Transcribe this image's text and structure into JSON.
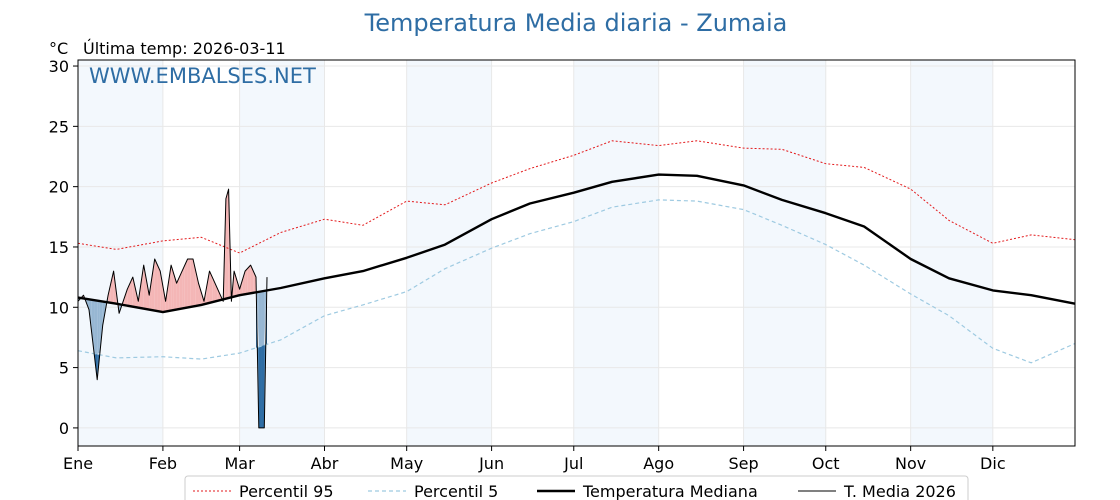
{
  "chart_data": {
    "type": "line",
    "title": "Temperatura Media diaria - Zumaia",
    "unit": "°C",
    "last_temp": "Última temp: 2026-03-11",
    "watermark": "WWW.EMBALSES.NET",
    "ylim": [
      -1.5,
      30.5
    ],
    "yticks": [
      0,
      5,
      10,
      15,
      20,
      25,
      30
    ],
    "months": [
      "Ene",
      "Feb",
      "Mar",
      "Abr",
      "May",
      "Jun",
      "Jul",
      "Ago",
      "Sep",
      "Oct",
      "Nov",
      "Dic"
    ],
    "grid": true,
    "legend_position": "bottom",
    "series": [
      {
        "name": "Percentil 95",
        "color": "#e31a1c",
        "style": "dotted",
        "x": [
          1,
          15,
          32,
          46,
          60,
          75,
          91,
          105,
          121,
          135,
          152,
          166,
          182,
          196,
          213,
          227,
          244,
          258,
          274,
          288,
          305,
          319,
          335,
          349,
          365
        ],
        "values": [
          15.3,
          14.8,
          15.5,
          15.8,
          14.5,
          16.2,
          17.3,
          16.8,
          18.8,
          18.5,
          20.3,
          21.5,
          22.6,
          23.8,
          23.4,
          23.8,
          23.2,
          23.1,
          21.9,
          21.6,
          19.8,
          17.2,
          15.3,
          16.0,
          15.6
        ]
      },
      {
        "name": "Percentil 5",
        "color": "#9ecae1",
        "style": "dashed",
        "x": [
          1,
          15,
          32,
          46,
          60,
          75,
          91,
          105,
          121,
          135,
          152,
          166,
          182,
          196,
          213,
          227,
          244,
          258,
          274,
          288,
          305,
          319,
          335,
          349,
          365
        ],
        "values": [
          6.4,
          5.8,
          5.9,
          5.7,
          6.2,
          7.3,
          9.3,
          10.2,
          11.3,
          13.2,
          14.9,
          16.1,
          17.1,
          18.3,
          18.9,
          18.8,
          18.1,
          16.8,
          15.2,
          13.5,
          11.1,
          9.3,
          6.6,
          5.4,
          7.0
        ]
      },
      {
        "name": "Temperatura Mediana",
        "color": "#000000",
        "style": "solid",
        "x": [
          1,
          15,
          32,
          46,
          60,
          75,
          91,
          105,
          121,
          135,
          152,
          166,
          182,
          196,
          213,
          227,
          244,
          258,
          274,
          288,
          305,
          319,
          335,
          349,
          365
        ],
        "values": [
          10.8,
          10.3,
          9.6,
          10.2,
          11.0,
          11.6,
          12.4,
          13.0,
          14.1,
          15.2,
          17.3,
          18.6,
          19.5,
          20.4,
          21.0,
          20.9,
          20.1,
          18.9,
          17.8,
          16.7,
          14.0,
          12.4,
          11.4,
          11.0,
          10.3
        ]
      },
      {
        "name": "T. Media 2026",
        "color": "#000000",
        "style": "solid",
        "x": [
          1,
          3,
          5,
          8,
          10,
          12,
          14,
          16,
          19,
          21,
          23,
          25,
          27,
          29,
          31,
          33,
          35,
          37,
          39,
          41,
          43,
          45,
          47,
          49,
          51,
          53,
          54,
          55,
          56,
          57,
          58,
          60,
          62,
          64,
          66,
          67,
          68,
          69,
          70
        ],
        "values": [
          10.5,
          11.0,
          9.8,
          4.0,
          8.5,
          11.0,
          13.0,
          9.5,
          11.5,
          12.5,
          10.5,
          13.5,
          11.0,
          14.0,
          13.0,
          10.5,
          13.5,
          12.0,
          13.0,
          14.0,
          14.0,
          12.0,
          10.5,
          13.0,
          12.0,
          11.0,
          10.5,
          19.0,
          19.8,
          10.5,
          13.0,
          11.5,
          13.0,
          13.5,
          12.5,
          0.0,
          0.0,
          0.0,
          12.5
        ]
      }
    ]
  }
}
